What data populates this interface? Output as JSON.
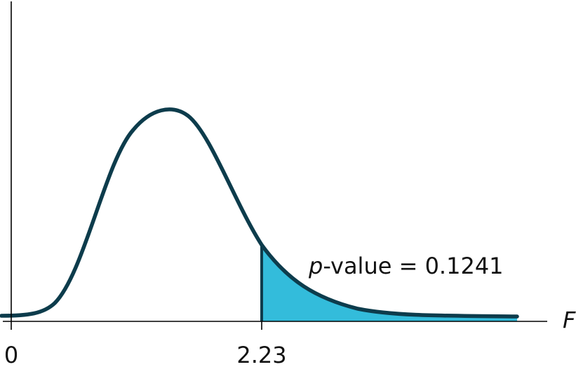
{
  "chart_data": {
    "type": "area",
    "xlabel": "F",
    "ylabel": "",
    "x_tick_labels": [
      "0",
      "2.23"
    ],
    "x_ticks": [
      0,
      2.23
    ],
    "shaded_from": 2.23,
    "annotation": {
      "italic_part": "p",
      "rest": "-value = 0.1241"
    },
    "p_value": 0.1241,
    "colors": {
      "curve": "#0d3c4c",
      "shade": "#33bcdb",
      "axis": "#000000"
    }
  }
}
